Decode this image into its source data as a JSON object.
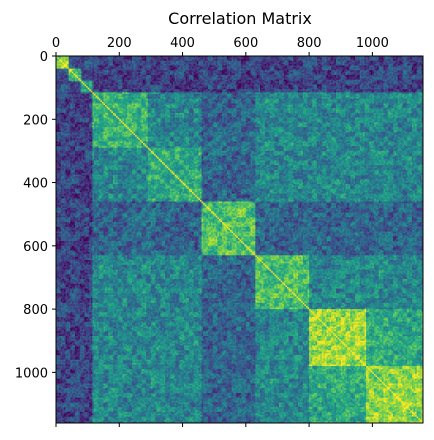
{
  "chart_data": {
    "type": "heatmap",
    "title": "Correlation Matrix",
    "xlabel": "",
    "ylabel": "",
    "size": 1160,
    "xlim": [
      0,
      1160
    ],
    "ylim": [
      1160,
      0
    ],
    "x_tick_position": "top",
    "xticks": [
      0,
      200,
      400,
      600,
      800,
      1000
    ],
    "yticks": [
      0,
      200,
      400,
      600,
      800,
      1000
    ],
    "xtick_labels": [
      "0",
      "200",
      "400",
      "600",
      "800",
      "1000"
    ],
    "ytick_labels": [
      "0",
      "200",
      "400",
      "600",
      "800",
      "1000"
    ],
    "colormap": "viridis",
    "colors": {
      "low": "#3b518b",
      "mid": "#21918c",
      "high": "#b5de2b",
      "diagonal": "#fde725"
    },
    "blocks": [
      {
        "start": 0,
        "end": 40,
        "within": 0.8
      },
      {
        "start": 40,
        "end": 80,
        "within": 0.75
      },
      {
        "start": 80,
        "end": 115,
        "within": 0.5
      },
      {
        "start": 115,
        "end": 290,
        "within": 0.65
      },
      {
        "start": 290,
        "end": 460,
        "within": 0.62
      },
      {
        "start": 460,
        "end": 630,
        "within": 0.7
      },
      {
        "start": 630,
        "end": 800,
        "within": 0.7
      },
      {
        "start": 800,
        "end": 980,
        "within": 0.85
      },
      {
        "start": 980,
        "end": 1160,
        "within": 0.82
      }
    ],
    "left_band": {
      "start": 0,
      "end": 115,
      "value": 0.2
    },
    "grid": false
  }
}
